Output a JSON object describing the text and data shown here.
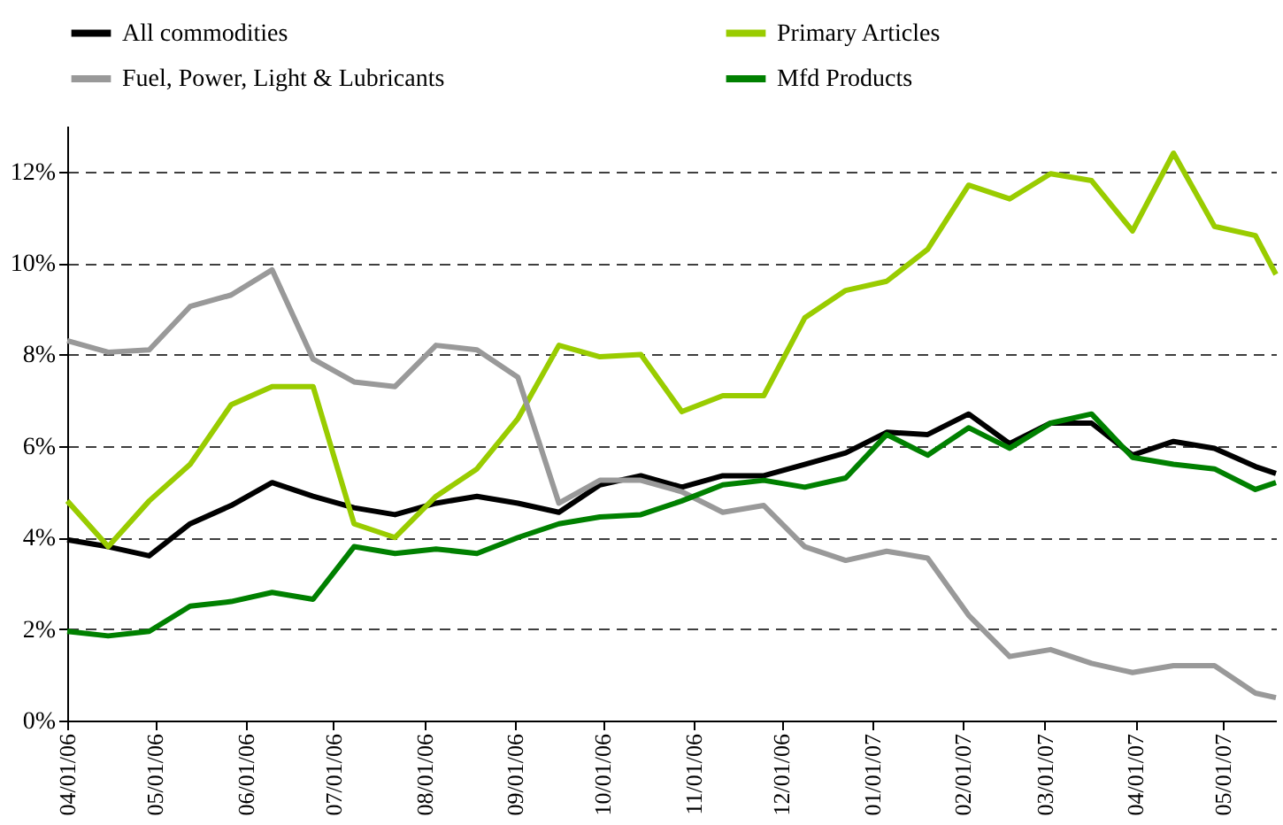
{
  "chart_data": {
    "type": "line",
    "x": [
      "2006-04-01",
      "2006-04-15",
      "2006-04-29",
      "2006-05-13",
      "2006-05-27",
      "2006-06-10",
      "2006-06-24",
      "2006-07-08",
      "2006-07-22",
      "2006-08-05",
      "2006-08-19",
      "2006-09-02",
      "2006-09-16",
      "2006-09-30",
      "2006-10-14",
      "2006-10-28",
      "2006-11-11",
      "2006-11-25",
      "2006-12-09",
      "2006-12-23",
      "2007-01-06",
      "2007-01-20",
      "2007-02-03",
      "2007-02-17",
      "2007-03-03",
      "2007-03-17",
      "2007-03-31",
      "2007-04-14",
      "2007-04-28",
      "2007-05-12",
      "2007-05-19"
    ],
    "series": [
      {
        "name": "All commodities",
        "color": "#000000",
        "values": [
          3.95,
          3.8,
          3.6,
          4.3,
          4.7,
          5.2,
          4.9,
          4.65,
          4.5,
          4.75,
          4.9,
          4.75,
          4.55,
          5.15,
          5.35,
          5.1,
          5.35,
          5.35,
          5.6,
          5.85,
          6.3,
          6.25,
          6.7,
          6.05,
          6.5,
          6.5,
          5.8,
          6.1,
          5.95,
          5.55,
          5.4
        ]
      },
      {
        "name": "Primary Articles",
        "color": "#99cc00",
        "values": [
          4.8,
          3.8,
          4.8,
          5.6,
          6.9,
          7.3,
          7.3,
          4.3,
          4.0,
          4.9,
          5.5,
          6.6,
          8.2,
          7.95,
          8.0,
          6.75,
          7.1,
          7.1,
          8.8,
          9.4,
          9.6,
          10.3,
          11.7,
          11.4,
          11.95,
          11.8,
          10.7,
          12.4,
          10.8,
          10.6,
          9.75
        ]
      },
      {
        "name": "Fuel, Power, Light & Lubricants",
        "color": "#999999",
        "values": [
          8.3,
          8.05,
          8.1,
          9.05,
          9.3,
          9.85,
          7.9,
          7.4,
          7.3,
          8.2,
          8.1,
          7.5,
          4.75,
          5.25,
          5.25,
          5.0,
          4.55,
          4.7,
          3.8,
          3.5,
          3.7,
          3.55,
          2.3,
          1.4,
          1.55,
          1.25,
          1.05,
          1.2,
          1.2,
          0.6,
          0.5
        ]
      },
      {
        "name": "Mfd Products",
        "color": "#008000",
        "values": [
          1.95,
          1.85,
          1.95,
          2.5,
          2.6,
          2.8,
          2.65,
          3.8,
          3.65,
          3.75,
          3.65,
          4.0,
          4.3,
          4.45,
          4.5,
          4.8,
          5.15,
          5.25,
          5.1,
          5.3,
          6.25,
          5.8,
          6.4,
          5.95,
          6.5,
          6.7,
          5.75,
          5.6,
          5.5,
          5.05,
          5.2
        ]
      }
    ],
    "xlim": [
      "2006-04-01",
      "2007-05-19"
    ],
    "xticks": [
      {
        "value": "2006-04-01",
        "label": "04/01/06"
      },
      {
        "value": "2006-05-01",
        "label": "05/01/06"
      },
      {
        "value": "2006-06-01",
        "label": "06/01/06"
      },
      {
        "value": "2006-07-01",
        "label": "07/01/06"
      },
      {
        "value": "2006-08-01",
        "label": "08/01/06"
      },
      {
        "value": "2006-09-01",
        "label": "09/01/06"
      },
      {
        "value": "2006-10-01",
        "label": "10/01/06"
      },
      {
        "value": "2006-11-01",
        "label": "11/01/06"
      },
      {
        "value": "2006-12-01",
        "label": "12/01/06"
      },
      {
        "value": "2007-01-01",
        "label": "01/01/07"
      },
      {
        "value": "2007-02-01",
        "label": "02/01/07"
      },
      {
        "value": "2007-03-01",
        "label": "03/01/07"
      },
      {
        "value": "2007-04-01",
        "label": "04/01/07"
      },
      {
        "value": "2007-05-01",
        "label": "05/01/07"
      }
    ],
    "ylim": [
      0,
      13
    ],
    "yticks": [
      {
        "value": 0,
        "label": "0%"
      },
      {
        "value": 2,
        "label": "2%"
      },
      {
        "value": 4,
        "label": "4%"
      },
      {
        "value": 6,
        "label": "6%"
      },
      {
        "value": 8,
        "label": "8%"
      },
      {
        "value": 10,
        "label": "10%"
      },
      {
        "value": 12,
        "label": "12%"
      }
    ],
    "grid": "y",
    "legend": "top",
    "marker": "none",
    "line_style": "solid"
  }
}
